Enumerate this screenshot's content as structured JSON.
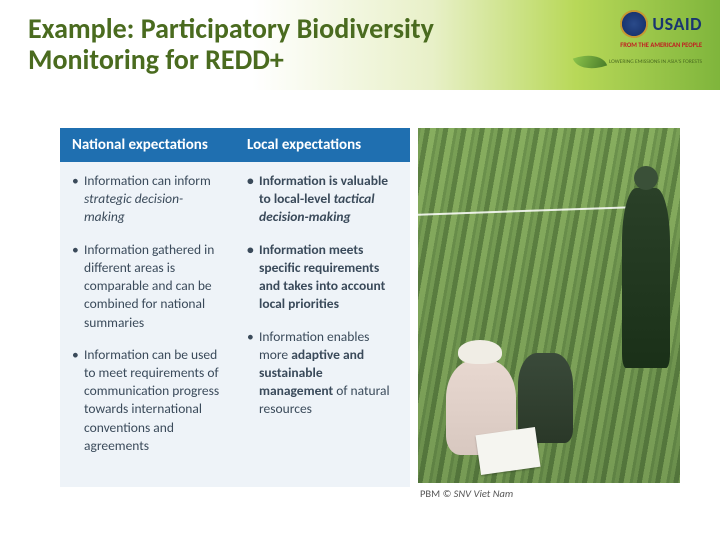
{
  "title": "Example: Participatory Biodiversity Monitoring for REDD+",
  "logos": {
    "usaid_name": "USAID",
    "usaid_tagline": "FROM THE AMERICAN PEOPLE",
    "leaf_tagline": "LOWERING EMISSIONS IN ASIA'S FORESTS"
  },
  "table": {
    "header_bg": "#1f6fb0",
    "body_bg": "#eef3f8",
    "text_color": "#3a4a5a",
    "headers": {
      "national": "National expectations",
      "local": "Local expectations"
    },
    "national": {
      "b1_pre": "Information can inform ",
      "b1_em": "strategic decision-making",
      "b2": "Information gathered in different areas is comparable and can be combined for national summaries",
      "b3": "Information can be used to meet requirements of communication progress towards international conventions and agreements"
    },
    "local": {
      "b1_pre": "Information is valuable to local-level ",
      "b1_em": "tactical decision-making",
      "b2": "Information meets specific requirements and takes into account local priorities",
      "b3_pre": "Information enables more ",
      "b3_bold": "adaptive and sustainable management",
      "b3_post": " of natural resources"
    }
  },
  "photo": {
    "alt": "Field researchers conducting participatory biodiversity monitoring in a forest plot, one standing holding a measuring tape, two kneeling recording data on paper.",
    "credit_label": "PBM",
    "credit_text": " © SNV Viet Nam"
  },
  "colors": {
    "title_color": "#4a6b1f",
    "band_gradient_end": "#7fb53c"
  }
}
